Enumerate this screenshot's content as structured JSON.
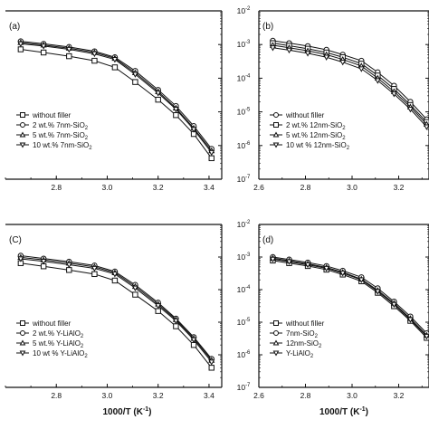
{
  "chart_data": [
    {
      "type": "line",
      "panel_label": "(a)",
      "x_ticks": [
        2.8,
        3.0,
        3.2,
        3.4
      ],
      "y_ticks": [],
      "xlabel": "",
      "xlim": [
        2.6,
        3.45
      ],
      "ylim": [
        1e-07,
        0.01
      ],
      "y_scale": "log",
      "legend_position": "bottom-left",
      "series": [
        {
          "name": "without filler",
          "marker": "square",
          "x": [
            2.66,
            2.75,
            2.85,
            2.95,
            3.03,
            3.11,
            3.2,
            3.27,
            3.34,
            3.41
          ],
          "y": [
            0.00072,
            0.00058,
            0.00045,
            0.00033,
            0.00021,
            7.7e-05,
            2.3e-05,
            8e-06,
            2.2e-06,
            4.2e-07
          ]
        },
        {
          "name": "2 wt.% 7nm-SiO",
          "name_sub": "2",
          "marker": "circle",
          "x": [
            2.66,
            2.75,
            2.85,
            2.95,
            3.03,
            3.11,
            3.2,
            3.27,
            3.34,
            3.41
          ],
          "y": [
            0.00125,
            0.00105,
            0.00085,
            0.00063,
            0.00042,
            0.000165,
            4.5e-05,
            1.5e-05,
            3.8e-06,
            8e-07
          ]
        },
        {
          "name": "5 wt.% 7nm-SiO",
          "name_sub": "2",
          "marker": "triangle-up",
          "x": [
            2.66,
            2.75,
            2.85,
            2.95,
            3.03,
            3.11,
            3.2,
            3.27,
            3.34,
            3.41
          ],
          "y": [
            0.00115,
            0.00097,
            0.00078,
            0.00058,
            0.00039,
            0.000145,
            4e-05,
            1.3e-05,
            3.3e-06,
            7e-07
          ]
        },
        {
          "name": "10 wt.% 7nm-SiO",
          "name_sub": "2",
          "marker": "triangle-down",
          "x": [
            2.66,
            2.75,
            2.85,
            2.95,
            3.03,
            3.11,
            3.2,
            3.27,
            3.34,
            3.41
          ],
          "y": [
            0.00105,
            0.0009,
            0.00072,
            0.00053,
            0.00036,
            0.00013,
            3.6e-05,
            1.2e-05,
            3e-06,
            6.2e-07
          ]
        }
      ]
    },
    {
      "type": "line",
      "panel_label": "(b)",
      "x_ticks": [
        2.6,
        2.8,
        3.0,
        3.2
      ],
      "y_ticks": [
        "10",
        "10",
        "10",
        "10",
        "10",
        "10"
      ],
      "y_tick_exps": [
        "-2",
        "-3",
        "-4",
        "-5",
        "-6",
        "-7"
      ],
      "xlabel": "",
      "xlim": [
        2.6,
        3.33
      ],
      "ylim": [
        1e-07,
        0.01
      ],
      "y_scale": "log",
      "legend_position": "bottom-left",
      "series": [
        {
          "name": "without filler",
          "marker": "circle",
          "x": [
            2.66,
            2.73,
            2.81,
            2.89,
            2.96,
            3.04,
            3.11,
            3.18,
            3.25,
            3.32
          ],
          "y": [
            0.0013,
            0.0011,
            0.0009,
            0.0007,
            0.0005,
            0.00033,
            0.00015,
            6e-05,
            2e-05,
            6e-06
          ]
        },
        {
          "name": "2 wt.% 12nm-SiO",
          "name_sub": "2",
          "marker": "square",
          "x": [
            2.66,
            2.73,
            2.81,
            2.89,
            2.96,
            3.04,
            3.11,
            3.18,
            3.25,
            3.32
          ],
          "y": [
            0.0011,
            0.00092,
            0.00075,
            0.00058,
            0.00042,
            0.00027,
            0.00012,
            4.8e-05,
            1.6e-05,
            5e-06
          ]
        },
        {
          "name": "5 wt.% 12nm-SiO",
          "name_sub": "2",
          "marker": "triangle-up",
          "x": [
            2.66,
            2.73,
            2.81,
            2.89,
            2.96,
            3.04,
            3.11,
            3.18,
            3.25,
            3.32
          ],
          "y": [
            0.00095,
            0.0008,
            0.00065,
            0.0005,
            0.00036,
            0.00023,
            0.0001,
            4e-05,
            1.4e-05,
            4.3e-06
          ]
        },
        {
          "name": "10 wt % 12nm-SiO",
          "name_sub": "2",
          "marker": "triangle-down",
          "x": [
            2.66,
            2.73,
            2.81,
            2.89,
            2.96,
            3.04,
            3.11,
            3.18,
            3.25,
            3.32
          ],
          "y": [
            0.0008,
            0.00068,
            0.00055,
            0.00042,
            0.0003,
            0.00019,
            8.5e-05,
            3.4e-05,
            1.2e-05,
            3.6e-06
          ]
        }
      ]
    },
    {
      "type": "line",
      "panel_label": "(C)",
      "x_ticks": [
        2.8,
        3.0,
        3.2,
        3.4
      ],
      "y_ticks": [],
      "xlabel": "1000/T (K",
      "xlabel_sup": "-1",
      "xlabel_end": ")",
      "xlim": [
        2.6,
        3.45
      ],
      "ylim": [
        1e-07,
        0.01
      ],
      "y_scale": "log",
      "legend_position": "bottom-left",
      "series": [
        {
          "name": "without filler",
          "marker": "square",
          "x": [
            2.66,
            2.75,
            2.85,
            2.95,
            3.03,
            3.11,
            3.2,
            3.27,
            3.34,
            3.41
          ],
          "y": [
            0.00065,
            0.00052,
            0.0004,
            0.0003,
            0.00019,
            7e-05,
            2.2e-05,
            7.5e-06,
            2e-06,
            4e-07
          ]
        },
        {
          "name": "2 wt.% Y-LiAlO",
          "name_sub": "2",
          "marker": "circle",
          "x": [
            2.66,
            2.75,
            2.85,
            2.95,
            3.03,
            3.11,
            3.2,
            3.27,
            3.34,
            3.41
          ],
          "y": [
            0.0011,
            0.0009,
            0.00072,
            0.00055,
            0.00036,
            0.00014,
            4e-05,
            1.3e-05,
            3.5e-06,
            7.5e-07
          ]
        },
        {
          "name": "5 wt.% Y-LiAlO",
          "name_sub": "2",
          "marker": "triangle-up",
          "x": [
            2.66,
            2.75,
            2.85,
            2.95,
            3.03,
            3.11,
            3.2,
            3.27,
            3.34,
            3.41
          ],
          "y": [
            0.00098,
            0.00082,
            0.00065,
            0.0005,
            0.00033,
            0.000125,
            3.6e-05,
            1.2e-05,
            3.2e-06,
            6.8e-07
          ]
        },
        {
          "name": "10 wt % Y-LiAlO",
          "name_sub": "2",
          "marker": "triangle-down",
          "x": [
            2.66,
            2.75,
            2.85,
            2.95,
            3.03,
            3.11,
            3.2,
            3.27,
            3.34,
            3.41
          ],
          "y": [
            0.00088,
            0.00074,
            0.00058,
            0.00045,
            0.0003,
            0.000112,
            3.2e-05,
            1.1e-05,
            2.9e-06,
            6e-07
          ]
        }
      ]
    },
    {
      "type": "line",
      "panel_label": "(d)",
      "x_ticks": [
        2.6,
        2.8,
        3.0,
        3.2
      ],
      "y_ticks": [
        "10",
        "10",
        "10",
        "10",
        "10",
        "10"
      ],
      "y_tick_exps": [
        "-2",
        "-3",
        "-4",
        "-5",
        "-6",
        "-7"
      ],
      "xlabel": "1000/T (K",
      "xlabel_sup": "-1",
      "xlabel_end": ")",
      "xlim": [
        2.6,
        3.33
      ],
      "ylim": [
        1e-07,
        0.01
      ],
      "y_scale": "log",
      "legend_position": "bottom-left",
      "series": [
        {
          "name": "without filler",
          "marker": "square",
          "x": [
            2.66,
            2.73,
            2.81,
            2.89,
            2.96,
            3.04,
            3.11,
            3.18,
            3.25,
            3.32
          ],
          "y": [
            0.00078,
            0.00065,
            0.00053,
            0.00041,
            0.00029,
            0.00018,
            8e-05,
            3.1e-05,
            1.1e-05,
            3.3e-06
          ]
        },
        {
          "name": "7nm-SiO",
          "name_sub": "2",
          "marker": "circle",
          "x": [
            2.66,
            2.73,
            2.81,
            2.89,
            2.96,
            3.04,
            3.11,
            3.18,
            3.25,
            3.32
          ],
          "y": [
            0.001,
            0.00084,
            0.00068,
            0.00053,
            0.00038,
            0.00024,
            0.00011,
            4.3e-05,
            1.5e-05,
            4.6e-06
          ]
        },
        {
          "name": "12nm-SiO",
          "name_sub": "2",
          "marker": "triangle-up",
          "x": [
            2.66,
            2.73,
            2.81,
            2.89,
            2.96,
            3.04,
            3.11,
            3.18,
            3.25,
            3.32
          ],
          "y": [
            0.00092,
            0.00077,
            0.00062,
            0.00048,
            0.00034,
            0.00021,
            9.5e-05,
            3.8e-05,
            1.3e-05,
            4e-06
          ]
        },
        {
          "name": "Y-LiAlO",
          "name_sub": "2",
          "marker": "triangle-down",
          "x": [
            2.66,
            2.73,
            2.81,
            2.89,
            2.96,
            3.04,
            3.11,
            3.18,
            3.25,
            3.32
          ],
          "y": [
            0.00086,
            0.00072,
            0.00058,
            0.00045,
            0.00032,
            0.0002,
            8.8e-05,
            3.5e-05,
            1.2e-05,
            3.7e-06
          ]
        }
      ]
    }
  ]
}
